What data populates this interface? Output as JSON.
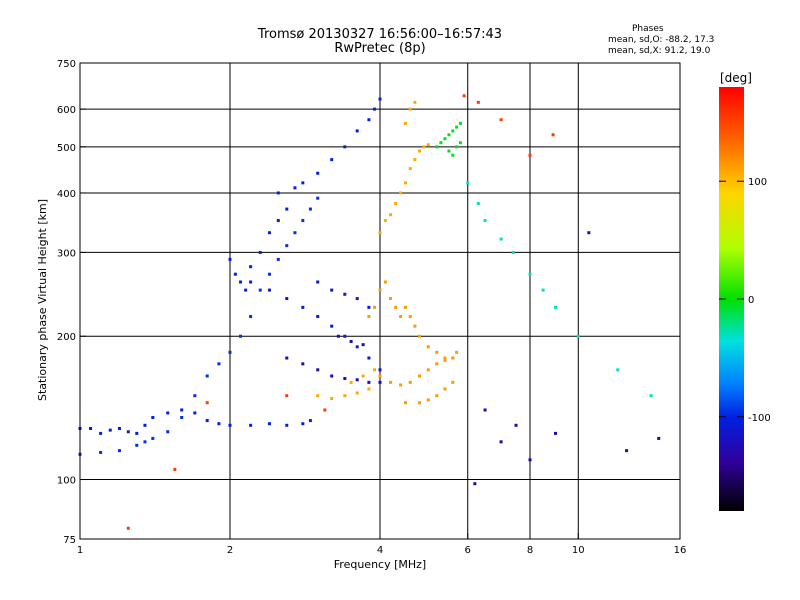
{
  "title_line1": "Tromsø 20130327 16:56:00–16:57:43",
  "title_line2": "RwPretec (8p)",
  "phases": {
    "heading": "Phases",
    "o_mode": "mean, sd,O: -88.2, 17.3",
    "x_mode": "mean, sd,X:  91.2, 19.0"
  },
  "colorbar": {
    "label": "[deg]",
    "ticks": [
      "100",
      "0",
      "-100"
    ]
  },
  "chart_data": {
    "type": "scatter",
    "title": "Tromsø 20130327 16:56:00–16:57:43",
    "subtitle": "RwPretec (8p)",
    "xlabel": "Frequency [MHz]",
    "ylabel": "Stationary phase Virtual Height [km]",
    "xscale": "log",
    "yscale": "log",
    "xlim": [
      1,
      16
    ],
    "ylim": [
      75,
      750
    ],
    "xticks": [
      "1",
      "2",
      "4",
      "6",
      "8",
      "10",
      "16"
    ],
    "yticks": [
      "75",
      "100",
      "200",
      "300",
      "400",
      "500",
      "600",
      "750"
    ],
    "x_gridlines": [
      2,
      4,
      6,
      8,
      10
    ],
    "y_gridlines": [
      100,
      200,
      300,
      400,
      500,
      600
    ],
    "colorbar_range": [
      -180,
      180
    ],
    "colorbar_label": "[deg]",
    "series": [
      {
        "points": [
          [
            1.0,
            128
          ],
          [
            1.05,
            128
          ],
          [
            1.1,
            125
          ],
          [
            1.15,
            127
          ],
          [
            1.2,
            128
          ],
          [
            1.25,
            126
          ],
          [
            1.3,
            125
          ],
          [
            1.35,
            130
          ],
          [
            1.4,
            135
          ],
          [
            1.5,
            138
          ],
          [
            1.6,
            140
          ],
          [
            1.7,
            138
          ],
          [
            1.8,
            133
          ],
          [
            1.9,
            131
          ],
          [
            2.0,
            130
          ],
          [
            2.2,
            130
          ],
          [
            2.4,
            131
          ],
          [
            2.6,
            130
          ],
          [
            2.8,
            131
          ],
          [
            2.9,
            133
          ]
        ],
        "phase": -100
      },
      {
        "points": [
          [
            1.0,
            113
          ],
          [
            1.1,
            114
          ],
          [
            1.2,
            115
          ],
          [
            1.3,
            118
          ],
          [
            1.35,
            120
          ],
          [
            1.4,
            122
          ],
          [
            1.5,
            126
          ],
          [
            1.6,
            135
          ],
          [
            1.7,
            150
          ],
          [
            1.8,
            165
          ],
          [
            1.9,
            175
          ],
          [
            2.0,
            185
          ],
          [
            2.1,
            200
          ],
          [
            2.2,
            220
          ],
          [
            2.3,
            250
          ],
          [
            2.4,
            270
          ],
          [
            2.5,
            290
          ],
          [
            2.6,
            310
          ],
          [
            2.7,
            330
          ],
          [
            2.8,
            350
          ],
          [
            2.9,
            370
          ],
          [
            3.0,
            390
          ]
        ],
        "phase": -95
      },
      {
        "points": [
          [
            2.0,
            290
          ],
          [
            2.05,
            270
          ],
          [
            2.1,
            260
          ],
          [
            2.15,
            250
          ],
          [
            2.2,
            280
          ],
          [
            2.3,
            300
          ],
          [
            2.4,
            330
          ],
          [
            2.5,
            350
          ],
          [
            2.6,
            370
          ],
          [
            2.5,
            400
          ],
          [
            2.7,
            410
          ],
          [
            2.8,
            420
          ],
          [
            3.0,
            440
          ],
          [
            3.2,
            470
          ],
          [
            3.4,
            500
          ],
          [
            3.6,
            540
          ],
          [
            3.8,
            570
          ],
          [
            3.9,
            600
          ],
          [
            4.0,
            630
          ]
        ],
        "phase": -100
      },
      {
        "points": [
          [
            2.2,
            260
          ],
          [
            2.4,
            250
          ],
          [
            2.6,
            240
          ],
          [
            2.8,
            230
          ],
          [
            3.0,
            220
          ],
          [
            3.2,
            210
          ],
          [
            3.4,
            200
          ],
          [
            3.6,
            190
          ],
          [
            3.8,
            180
          ],
          [
            4.0,
            170
          ],
          [
            3.0,
            260
          ],
          [
            3.2,
            250
          ],
          [
            3.4,
            245
          ],
          [
            3.6,
            240
          ],
          [
            3.8,
            230
          ]
        ],
        "phase": -110
      },
      {
        "points": [
          [
            2.6,
            180
          ],
          [
            2.8,
            175
          ],
          [
            3.0,
            170
          ],
          [
            3.2,
            165
          ],
          [
            3.4,
            163
          ],
          [
            3.6,
            162
          ],
          [
            3.8,
            160
          ],
          [
            4.0,
            160
          ],
          [
            3.3,
            200
          ],
          [
            3.5,
            195
          ],
          [
            3.7,
            192
          ]
        ],
        "phase": -125
      },
      {
        "points": [
          [
            3.0,
            150
          ],
          [
            3.2,
            148
          ],
          [
            3.4,
            150
          ],
          [
            3.6,
            152
          ],
          [
            3.8,
            155
          ],
          [
            3.5,
            160
          ],
          [
            3.7,
            165
          ],
          [
            3.9,
            170
          ]
        ],
        "phase": 105
      },
      {
        "points": [
          [
            4.0,
            330
          ],
          [
            4.1,
            350
          ],
          [
            4.2,
            360
          ],
          [
            4.3,
            380
          ],
          [
            4.4,
            400
          ],
          [
            4.5,
            420
          ],
          [
            4.6,
            450
          ],
          [
            4.7,
            470
          ],
          [
            4.8,
            490
          ],
          [
            4.9,
            500
          ],
          [
            5.0,
            505
          ],
          [
            4.5,
            560
          ],
          [
            4.6,
            600
          ],
          [
            4.7,
            620
          ]
        ],
        "phase": 105
      },
      {
        "points": [
          [
            3.8,
            220
          ],
          [
            3.9,
            230
          ],
          [
            4.0,
            250
          ],
          [
            4.1,
            260
          ],
          [
            4.2,
            240
          ],
          [
            4.3,
            230
          ],
          [
            4.4,
            220
          ],
          [
            4.5,
            230
          ],
          [
            4.6,
            220
          ],
          [
            4.7,
            210
          ],
          [
            4.8,
            200
          ],
          [
            5.0,
            190
          ],
          [
            5.2,
            185
          ],
          [
            5.4,
            180
          ],
          [
            5.6,
            180
          ]
        ],
        "phase": 110
      },
      {
        "points": [
          [
            4.0,
            165
          ],
          [
            4.2,
            160
          ],
          [
            4.4,
            158
          ],
          [
            4.6,
            160
          ],
          [
            4.8,
            165
          ],
          [
            5.0,
            170
          ],
          [
            5.2,
            175
          ],
          [
            5.4,
            178
          ],
          [
            5.6,
            180
          ],
          [
            5.7,
            185
          ],
          [
            4.5,
            145
          ],
          [
            4.8,
            145
          ],
          [
            5.0,
            147
          ],
          [
            5.2,
            150
          ],
          [
            5.4,
            155
          ],
          [
            5.6,
            160
          ]
        ],
        "phase": 110
      },
      {
        "points": [
          [
            5.2,
            500
          ],
          [
            5.3,
            510
          ],
          [
            5.4,
            520
          ],
          [
            5.5,
            530
          ],
          [
            5.6,
            540
          ],
          [
            5.7,
            550
          ],
          [
            5.8,
            560
          ],
          [
            5.5,
            490
          ],
          [
            5.6,
            480
          ],
          [
            5.7,
            500
          ],
          [
            5.8,
            510
          ]
        ],
        "phase": -5
      },
      {
        "points": [
          [
            6.0,
            420
          ],
          [
            6.3,
            380
          ],
          [
            6.5,
            350
          ],
          [
            7.0,
            320
          ],
          [
            7.4,
            300
          ],
          [
            8.0,
            270
          ],
          [
            8.5,
            250
          ],
          [
            9.0,
            230
          ],
          [
            10.0,
            200
          ],
          [
            12.0,
            170
          ],
          [
            14.0,
            150
          ]
        ],
        "phase": -30
      },
      {
        "points": [
          [
            6.2,
            98
          ],
          [
            6.5,
            140
          ],
          [
            7.0,
            120
          ],
          [
            7.5,
            130
          ],
          [
            8.0,
            110
          ],
          [
            9.0,
            125
          ],
          [
            10.5,
            330
          ],
          [
            12.5,
            115
          ],
          [
            14.5,
            122
          ]
        ],
        "phase": -130
      },
      {
        "points": [
          [
            1.25,
            79
          ],
          [
            1.55,
            105
          ],
          [
            1.8,
            145
          ],
          [
            2.6,
            150
          ],
          [
            3.1,
            140
          ],
          [
            5.9,
            640
          ],
          [
            6.3,
            620
          ],
          [
            7.0,
            570
          ],
          [
            8.9,
            530
          ],
          [
            8.0,
            480
          ]
        ],
        "phase": 150
      }
    ]
  }
}
